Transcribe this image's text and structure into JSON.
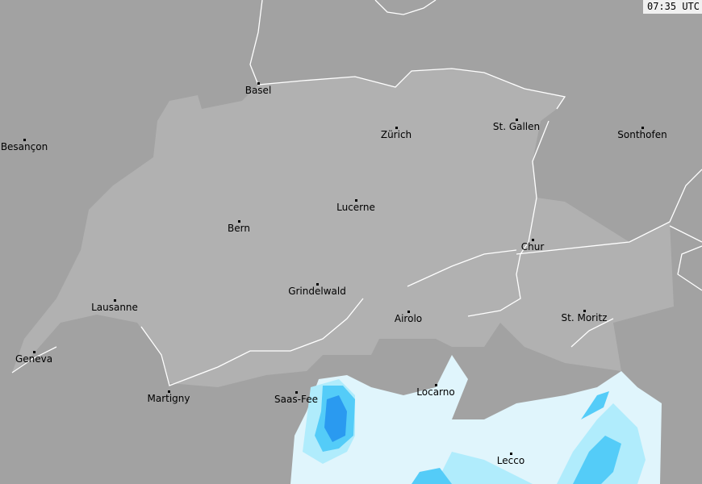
{
  "timestamp": "07:35 UTC",
  "colors": {
    "background": "#a2a2a2",
    "switzerland": "#b1b1b1",
    "border": "#ffffff",
    "radar_light": "#e0f5fc",
    "radar_cyan": "#b0ecfc",
    "radar_mid": "#54ccf8",
    "radar_strong": "#2a9af0"
  },
  "cities": [
    {
      "name": "Basel"
    },
    {
      "name": "Zürich"
    },
    {
      "name": "St. Gallen"
    },
    {
      "name": "Sonthofen"
    },
    {
      "name": "Besançon"
    },
    {
      "name": "Lucerne"
    },
    {
      "name": "Bern"
    },
    {
      "name": "Chur"
    },
    {
      "name": "Grindelwald"
    },
    {
      "name": "Lausanne"
    },
    {
      "name": "Airolo"
    },
    {
      "name": "St. Moritz"
    },
    {
      "name": "Geneva"
    },
    {
      "name": "Martigny"
    },
    {
      "name": "Saas-Fee"
    },
    {
      "name": "Locarno"
    },
    {
      "name": "Lecco"
    }
  ]
}
